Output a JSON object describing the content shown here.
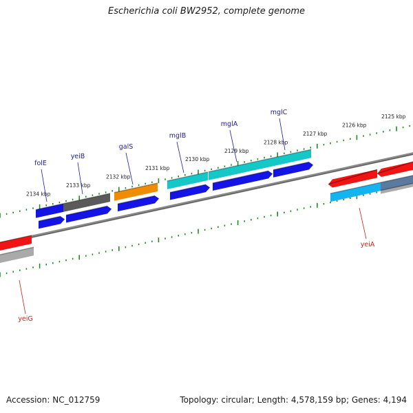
{
  "title": "Escherichia coli BW2952, complete genome",
  "accession": "Accession: NC_012759",
  "summary": "Topology: circular; Length: 4,578,159 bp; Genes: 4,194",
  "colors": {
    "background": "#ffffff",
    "backbone": "#7f7f7f",
    "tick": "#1e8c1e",
    "forward_label": "#1a1aa8",
    "reverse_label": "#d21e1e",
    "blue": "#1414e6",
    "gray": "#5a5a5a",
    "orange": "#f08c00",
    "cyan": "#14c8c8",
    "red": "#f01414",
    "light_blue": "#14b4f0",
    "silver": "#aaaaaa",
    "steel": "#5a7aa0"
  },
  "scale_labels": [
    {
      "text": "2134 kbp"
    },
    {
      "text": "2133 kbp"
    },
    {
      "text": "2132 kbp"
    },
    {
      "text": "2131 kbp"
    },
    {
      "text": "2130 kbp"
    },
    {
      "text": "2129 kbp"
    },
    {
      "text": "2128 kbp"
    },
    {
      "text": "2127 kbp"
    },
    {
      "text": "2126 kbp"
    },
    {
      "text": "2125 kbp"
    }
  ],
  "forward_genes": [
    {
      "label": "folE",
      "color": "blue"
    },
    {
      "label": "yeiB",
      "color": "gray"
    },
    {
      "label": "galS",
      "color": "orange"
    },
    {
      "label": "mglB",
      "color": "cyan"
    },
    {
      "label": "mglA",
      "color": "cyan"
    },
    {
      "label": "mglC",
      "color": "cyan"
    },
    {
      "label": "",
      "color": "blue"
    }
  ],
  "reverse_genes": [
    {
      "label": "yeiA",
      "color": "red"
    },
    {
      "label": "yeiG",
      "color": "red"
    }
  ]
}
